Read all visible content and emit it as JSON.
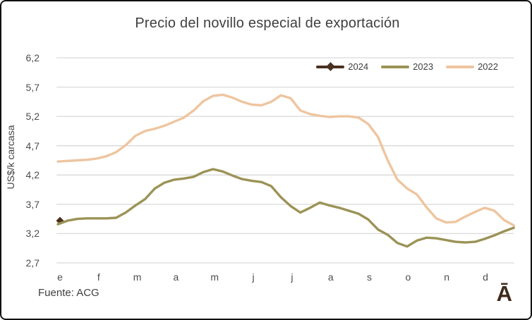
{
  "title": "Precio del novillo especial de exportación",
  "y_axis": {
    "label": "US$/k carcasa",
    "ticks": [
      {
        "label": "6,2",
        "value": 6.2
      },
      {
        "label": "5,7",
        "value": 5.7
      },
      {
        "label": "5,2",
        "value": 5.2
      },
      {
        "label": "4,7",
        "value": 4.7
      },
      {
        "label": "4,2",
        "value": 4.2
      },
      {
        "label": "3,7",
        "value": 3.7
      },
      {
        "label": "3,2",
        "value": 3.2
      },
      {
        "label": "2,7",
        "value": 2.7
      }
    ]
  },
  "x_axis": {
    "ticks": [
      "e",
      "f",
      "m",
      "a",
      "m",
      "j",
      "j",
      "a",
      "s",
      "o",
      "n",
      "d"
    ]
  },
  "legend": {
    "items": [
      {
        "label": "2024",
        "color": "#4a3020",
        "marker": "diamond"
      },
      {
        "label": "2023",
        "color": "#9b9356",
        "marker": "none"
      },
      {
        "label": "2022",
        "color": "#eec5a0",
        "marker": "none"
      }
    ]
  },
  "footer": {
    "source": "Fuente: ACG",
    "logo": "Ā"
  },
  "colors": {
    "grid": "#d9d9d9",
    "text": "#404040",
    "tick_text": "#4d4d4d",
    "series_2024": "#4a3020",
    "series_2023": "#9b9356",
    "series_2022": "#eec5a0"
  },
  "chart_data": {
    "type": "line",
    "title": "Precio del novillo especial de exportación",
    "xlabel": "",
    "ylabel": "US$/k carcasa",
    "ylim": [
      2.7,
      6.2
    ],
    "grid": "horizontal-only",
    "legend_position": "top-right",
    "x_unit": "weekly points, 4 per month",
    "categories": [
      "e",
      "f",
      "m",
      "a",
      "m",
      "j",
      "j",
      "a",
      "s",
      "o",
      "n",
      "d"
    ],
    "series": [
      {
        "name": "2024",
        "color": "#4a3020",
        "marker": "diamond",
        "values": [
          3.42
        ]
      },
      {
        "name": "2023",
        "color": "#9b9356",
        "marker": "none",
        "values": [
          3.36,
          3.42,
          3.45,
          3.46,
          3.46,
          3.46,
          3.47,
          3.56,
          3.68,
          3.79,
          3.97,
          4.07,
          4.12,
          4.14,
          4.17,
          4.25,
          4.3,
          4.26,
          4.19,
          4.13,
          4.1,
          4.08,
          4.01,
          3.82,
          3.67,
          3.56,
          3.64,
          3.73,
          3.68,
          3.64,
          3.59,
          3.54,
          3.44,
          3.27,
          3.18,
          3.04,
          2.98,
          3.08,
          3.13,
          3.12,
          3.09,
          3.06,
          3.05,
          3.06,
          3.11,
          3.17,
          3.24,
          3.3
        ]
      },
      {
        "name": "2022",
        "color": "#eec5a0",
        "marker": "none",
        "values": [
          4.43,
          4.44,
          4.45,
          4.46,
          4.48,
          4.52,
          4.59,
          4.71,
          4.87,
          4.95,
          4.99,
          5.04,
          5.11,
          5.18,
          5.3,
          5.46,
          5.55,
          5.57,
          5.52,
          5.45,
          5.4,
          5.39,
          5.45,
          5.56,
          5.51,
          5.3,
          5.24,
          5.21,
          5.19,
          5.2,
          5.2,
          5.18,
          5.07,
          4.85,
          4.45,
          4.12,
          3.97,
          3.87,
          3.65,
          3.46,
          3.39,
          3.4,
          3.49,
          3.57,
          3.64,
          3.59,
          3.43,
          3.34
        ]
      }
    ]
  }
}
